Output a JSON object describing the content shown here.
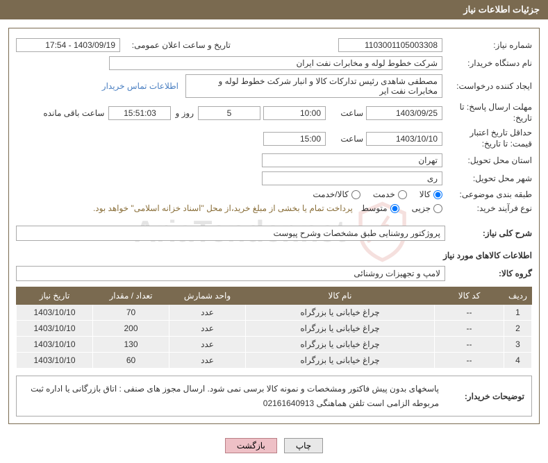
{
  "watermark_text": "AriaTender.net",
  "header": {
    "title": "جزئیات اطلاعات نیاز"
  },
  "fields": {
    "need_number": {
      "label": "شماره نیاز:",
      "value": "1103001105003308"
    },
    "announce_datetime": {
      "label": "تاریخ و ساعت اعلان عمومی:",
      "value": "1403/09/19 - 17:54"
    },
    "buyer_org": {
      "label": "نام دستگاه خریدار:",
      "value": "شرکت خطوط لوله و مخابرات نفت ایران"
    },
    "requester": {
      "label": "ایجاد کننده درخواست:",
      "value": "مصطفی  شاهدی رئیس تدارکات کالا و انبار شرکت خطوط لوله و مخابرات نفت ایر",
      "link": "اطلاعات تماس خریدار"
    },
    "response_deadline": {
      "label": "مهلت ارسال پاسخ: تا تاریخ:",
      "date": "1403/09/25",
      "time_label": "ساعت",
      "time": "10:00",
      "days": "5",
      "days_label": "روز و",
      "countdown": "15:51:03",
      "remain_label": "ساعت باقی مانده"
    },
    "price_validity": {
      "label": "حداقل تاریخ اعتبار قیمت: تا تاریخ:",
      "date": "1403/10/10",
      "time_label": "ساعت",
      "time": "15:00"
    },
    "delivery_province": {
      "label": "استان محل تحویل:",
      "value": "تهران"
    },
    "delivery_city": {
      "label": "شهر محل تحویل:",
      "value": "ری"
    },
    "subject_class": {
      "label": "طبقه بندی موضوعی:",
      "options": [
        "کالا",
        "خدمت",
        "کالا/خدمت"
      ],
      "selected": 0
    },
    "purchase_type": {
      "label": "نوع فرآیند خرید:",
      "options": [
        "جزیی",
        "متوسط"
      ],
      "selected": 1,
      "note": "پرداخت تمام یا بخشی از مبلغ خرید،از محل \"اسناد خزانه اسلامی\" خواهد بود."
    },
    "need_desc": {
      "label": "شرح کلی نیاز:",
      "value": "پروژکتور روشنایی طبق مشخصات وشرح پیوست"
    },
    "goods_info_title": "اطلاعات کالاهای مورد نیاز",
    "goods_group": {
      "label": "گروه کالا:",
      "value": "لامپ و تجهیزات روشنائی"
    },
    "buyer_notes": {
      "label": "توضیحات خریدار:",
      "value": "پاسخهای بدون پیش فاکتور ومشخصات و نمونه  کالا برسی نمی شود. ارسال مجوز های صنفی : اتاق بازرگانی یا اداره ثبت مربوطه  الزامی است تلفن هماهنگی  02161640913"
    }
  },
  "table": {
    "headers": {
      "idx": "ردیف",
      "code": "کد کالا",
      "name": "نام کالا",
      "unit": "واحد شمارش",
      "qty": "تعداد / مقدار",
      "date": "تاریخ نیاز"
    },
    "rows": [
      {
        "idx": "1",
        "code": "--",
        "name": "چراغ خیابانی یا بزرگراه",
        "unit": "عدد",
        "qty": "70",
        "date": "1403/10/10"
      },
      {
        "idx": "2",
        "code": "--",
        "name": "چراغ خیابانی یا بزرگراه",
        "unit": "عدد",
        "qty": "200",
        "date": "1403/10/10"
      },
      {
        "idx": "3",
        "code": "--",
        "name": "چراغ خیابانی یا بزرگراه",
        "unit": "عدد",
        "qty": "130",
        "date": "1403/10/10"
      },
      {
        "idx": "4",
        "code": "--",
        "name": "چراغ خیابانی یا بزرگراه",
        "unit": "عدد",
        "qty": "60",
        "date": "1403/10/10"
      }
    ]
  },
  "buttons": {
    "print": "چاپ",
    "back": "بازگشت"
  },
  "colors": {
    "header_bg": "#7a6a50",
    "row_bg": "#eeeeee",
    "link": "#4a7fc1",
    "gold": "#8a6f3a"
  }
}
